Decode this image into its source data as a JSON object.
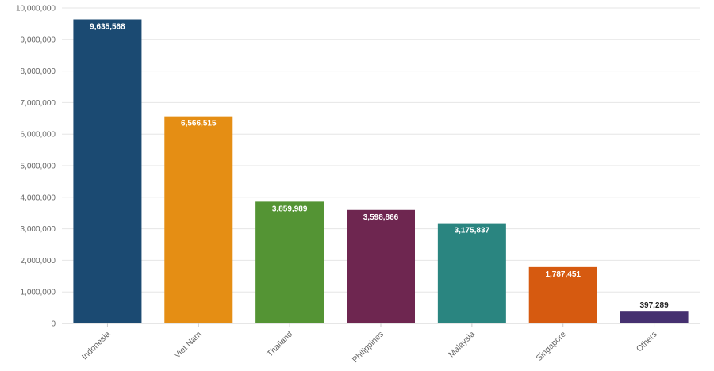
{
  "chart_data": {
    "type": "bar",
    "title": "",
    "xlabel": "",
    "ylabel": "",
    "categories": [
      "Indonesia",
      "Viet Nam",
      "Thailand",
      "Philippines",
      "Malaysia",
      "Singapore",
      "Others"
    ],
    "values": [
      9635568,
      6566515,
      3859989,
      3598866,
      3175837,
      1787451,
      397289
    ],
    "value_labels": [
      "9,635,568",
      "6,566,515",
      "3,859,989",
      "3,598,866",
      "3,175,837",
      "1,787,451",
      "397,289"
    ],
    "colors": [
      "#1b4a72",
      "#e58e14",
      "#549434",
      "#6e2650",
      "#2a8580",
      "#d65a10",
      "#453070"
    ],
    "ylim": [
      0,
      10000000
    ],
    "yticks": [
      0,
      1000000,
      2000000,
      3000000,
      4000000,
      5000000,
      6000000,
      7000000,
      8000000,
      9000000,
      10000000
    ],
    "ytick_labels": [
      "0",
      "1,000,000",
      "2,000,000",
      "3,000,000",
      "4,000,000",
      "5,000,000",
      "6,000,000",
      "7,000,000",
      "8,000,000",
      "9,000,000",
      "10,000,000"
    ],
    "grid": true,
    "legend": "none"
  }
}
